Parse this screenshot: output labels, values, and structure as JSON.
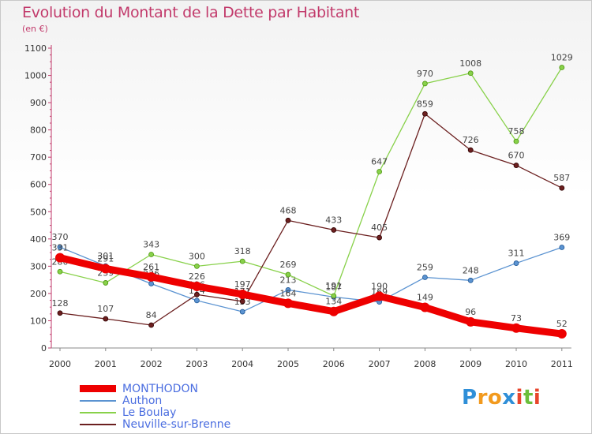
{
  "title": "Evolution du Montant de la Dette par Habitant",
  "subtitle": "(en €)",
  "brand": {
    "text": "Proxiti",
    "letters": [
      {
        "ch": "P",
        "color": "#2f8fd8"
      },
      {
        "ch": "r",
        "color": "#f29a1e"
      },
      {
        "ch": "o",
        "color": "#f29a1e"
      },
      {
        "ch": "x",
        "color": "#2f8fd8"
      },
      {
        "ch": "i",
        "color": "#e8452c"
      },
      {
        "ch": "t",
        "color": "#6abf3b"
      },
      {
        "ch": "i",
        "color": "#e8452c"
      }
    ]
  },
  "chart_data": {
    "type": "line",
    "title": "Evolution du Montant de la Dette par Habitant",
    "subtitle": "(en €)",
    "xlabel": "",
    "ylabel": "",
    "x": [
      "2000",
      "2001",
      "2002",
      "2003",
      "2004",
      "2005",
      "2006",
      "2007",
      "2008",
      "2009",
      "2010",
      "2011"
    ],
    "ylim": [
      0,
      1100
    ],
    "yticks": [
      0,
      100,
      200,
      300,
      400,
      500,
      600,
      700,
      800,
      900,
      1000,
      1100
    ],
    "grid": false,
    "legend_position": "bottom-left",
    "series": [
      {
        "name": "MONTHODON",
        "color": "#ee0000",
        "width": 9,
        "markers": true,
        "values": [
          331,
          291,
          261,
          226,
          197,
          164,
          134,
          190,
          149,
          96,
          73,
          52
        ]
      },
      {
        "name": "Authon",
        "color": "#5b93d1",
        "width": 1.3,
        "markers": true,
        "values": [
          370,
          301,
          236,
          174,
          133,
          213,
          187,
          169,
          259,
          248,
          311,
          369
        ]
      },
      {
        "name": "Le Boulay",
        "color": "#88d14a",
        "width": 1.3,
        "markers": true,
        "values": [
          280,
          239,
          343,
          300,
          318,
          269,
          191,
          647,
          970,
          1008,
          758,
          1029
        ]
      },
      {
        "name": "Neuville-sur-Brenne",
        "color": "#6b1f1f",
        "width": 1.3,
        "markers": true,
        "values": [
          128,
          107,
          84,
          196,
          171,
          468,
          433,
          405,
          859,
          726,
          670,
          587
        ]
      }
    ]
  }
}
